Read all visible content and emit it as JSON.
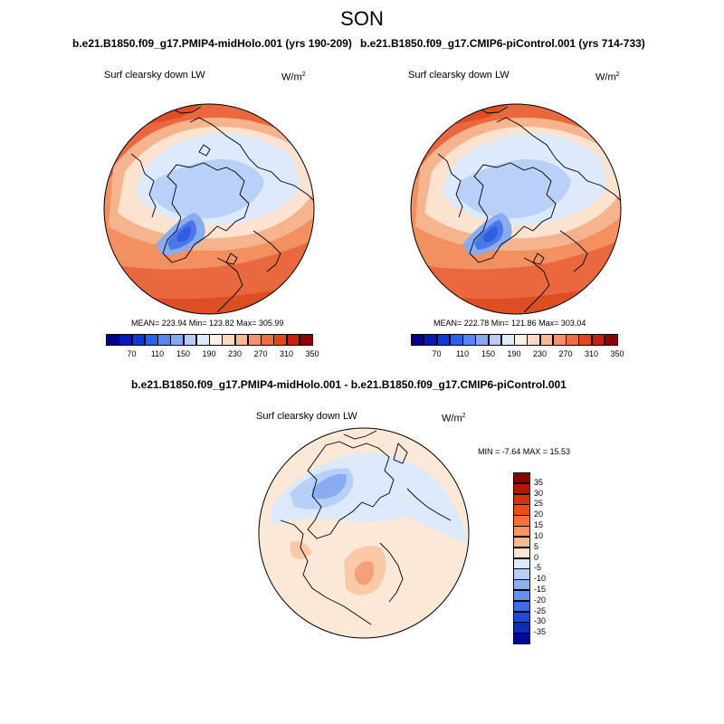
{
  "title": "SON",
  "top_left": {
    "case": "b.e21.B1850.f09_g17.PMIP4-midHolo.001 (yrs 190-209)",
    "variable": "Surf clearsky down LW",
    "units_base": "W/m",
    "units_exp": "2",
    "stats": "MEAN= 223.94  Min= 123.82  Max= 305.99"
  },
  "top_right": {
    "case": "b.e21.B1850.f09_g17.CMIP6-piControl.001 (yrs 714-733)",
    "variable": "Surf clearsky down LW",
    "units_base": "W/m",
    "units_exp": "2",
    "stats": "MEAN= 222.78  Min= 121.86  Max= 303.04"
  },
  "top_colorbar": {
    "labels": [
      "70",
      "110",
      "150",
      "190",
      "230",
      "270",
      "310",
      "350"
    ],
    "colors": [
      "#00008b",
      "#0019b8",
      "#0a3bd6",
      "#2c5ee6",
      "#5784f0",
      "#86a8f5",
      "#b6cdf8",
      "#ddebfb",
      "#fdf1e6",
      "#fcd8bf",
      "#f9b896",
      "#f5946c",
      "#ef6c42",
      "#e34420",
      "#c82010",
      "#8b0000"
    ]
  },
  "bottom": {
    "case": "b.e21.B1850.f09_g17.PMIP4-midHolo.001 - b.e21.B1850.f09_g17.CMIP6-piControl.001",
    "variable": "Surf clearsky down LW",
    "units_base": "W/m",
    "units_exp": "2",
    "stats": "MIN =  -7.64 MAX =  15.53"
  },
  "diff_colorbar": {
    "labels": [
      "35",
      "30",
      "25",
      "20",
      "15",
      "10",
      "5",
      "0",
      "-5",
      "-10",
      "-15",
      "-20",
      "-25",
      "-30",
      "-35"
    ],
    "colors": [
      "#8b0000",
      "#b81505",
      "#d8300c",
      "#ec4d1c",
      "#f56f3e",
      "#f89466",
      "#fab890",
      "#fde4cf",
      "#dcebfb",
      "#b7cff7",
      "#8eb0f2",
      "#6690ec",
      "#3f6de4",
      "#1f4bd6",
      "#0b2cb8",
      "#000a8b"
    ]
  },
  "palette": {
    "deep_blue": "#2f5ee0",
    "mid_blue": "#87aaf2",
    "light_blue": "#dbe9fb",
    "cream": "#fce8d6",
    "peach": "#f8c3a1",
    "salmon": "#f39a72",
    "orange_red": "#ea6a3f",
    "red": "#d8441d"
  }
}
